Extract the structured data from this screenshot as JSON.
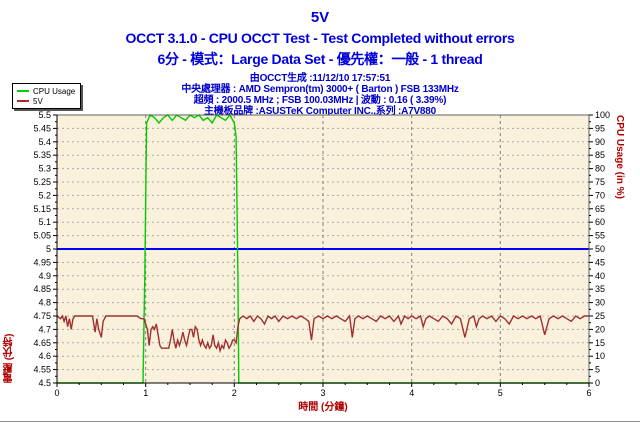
{
  "header": {
    "title": "5V",
    "subtitle1": "OCCT 3.1.0 - CPU OCCT Test - Test Completed without errors",
    "subtitle2": "6分 - 模式：Large Data Set - 優先權：一般 - 1 thread",
    "info_lines": [
      "由OCCT生成 :11/12/10 17:57:51",
      "中央處理器 : AMD Sempron(tm) 3000+ ( Barton ) FSB 133MHz",
      "超頻 : 2000.5 MHz ; FSB 100.03MHz | 波動 : 0.16 ( 3.39%)",
      "主機板品牌 :ASUSTeK Computer INC.,系列 :A7V880"
    ]
  },
  "legend": {
    "items": [
      {
        "label": "CPU Usage",
        "color": "#00cc00"
      },
      {
        "label": "5V",
        "color": "#a03030"
      }
    ]
  },
  "colors": {
    "title_text": "#0000dd",
    "info_text": "#0000cc",
    "axis_label": "#b00000",
    "plot_bg": "#faf1dc",
    "grid_minor": "#aaaaaa",
    "grid_major": "#808080",
    "border": "#606060",
    "reference_line": "#0000ff",
    "cpu_series": "#00cc00",
    "volt_series": "#a03030"
  },
  "chart_data": {
    "type": "line",
    "title": "5V",
    "xlabel": "時間 (分鐘)",
    "ylabel_left": "電壓 (伏特)",
    "ylabel_right": "CPU Usage (in %)",
    "xlim": [
      0,
      6
    ],
    "ylim_left": [
      4.5,
      5.5
    ],
    "ylim_right": [
      0,
      100
    ],
    "x_ticks": [
      0,
      1,
      2,
      3,
      4,
      5,
      6
    ],
    "x_minor_step": 0.25,
    "y_left_ticks": [
      4.5,
      4.55,
      4.6,
      4.65,
      4.7,
      4.75,
      4.8,
      4.85,
      4.9,
      4.95,
      5,
      5.05,
      5.1,
      5.15,
      5.2,
      5.25,
      5.3,
      5.35,
      5.4,
      5.45,
      5.5
    ],
    "y_left_minor_step": 0.025,
    "y_right_ticks": [
      0,
      5,
      10,
      15,
      20,
      25,
      30,
      35,
      40,
      45,
      50,
      55,
      60,
      65,
      70,
      75,
      80,
      85,
      90,
      95,
      100
    ],
    "grid": true,
    "legend_position": "top-left",
    "reference_line": {
      "axis": "left",
      "value": 5.0,
      "color": "#0000ff"
    },
    "series": [
      {
        "name": "CPU Usage",
        "axis": "right",
        "color": "#00cc00",
        "points": [
          [
            0,
            0
          ],
          [
            0.97,
            0
          ],
          [
            0.99,
            40
          ],
          [
            1.01,
            97
          ],
          [
            1.05,
            100
          ],
          [
            1.1,
            99
          ],
          [
            1.15,
            97
          ],
          [
            1.2,
            99
          ],
          [
            1.25,
            100
          ],
          [
            1.3,
            98
          ],
          [
            1.35,
            100
          ],
          [
            1.4,
            99
          ],
          [
            1.45,
            98
          ],
          [
            1.5,
            100
          ],
          [
            1.55,
            99
          ],
          [
            1.6,
            100
          ],
          [
            1.65,
            98
          ],
          [
            1.7,
            99
          ],
          [
            1.75,
            97
          ],
          [
            1.8,
            100
          ],
          [
            1.85,
            99
          ],
          [
            1.9,
            98
          ],
          [
            1.95,
            100
          ],
          [
            2,
            97
          ],
          [
            2.02,
            92
          ],
          [
            2.04,
            40
          ],
          [
            2.05,
            0
          ],
          [
            6,
            0
          ]
        ]
      },
      {
        "name": "5V",
        "axis": "left",
        "color": "#a03030",
        "points": [
          [
            0,
            4.75
          ],
          [
            0.04,
            4.74
          ],
          [
            0.06,
            4.75
          ],
          [
            0.08,
            4.73
          ],
          [
            0.1,
            4.75
          ],
          [
            0.12,
            4.71
          ],
          [
            0.14,
            4.74
          ],
          [
            0.16,
            4.7
          ],
          [
            0.18,
            4.74
          ],
          [
            0.2,
            4.75
          ],
          [
            0.25,
            4.75
          ],
          [
            0.3,
            4.75
          ],
          [
            0.35,
            4.75
          ],
          [
            0.4,
            4.75
          ],
          [
            0.43,
            4.69
          ],
          [
            0.45,
            4.74
          ],
          [
            0.47,
            4.7
          ],
          [
            0.5,
            4.67
          ],
          [
            0.52,
            4.73
          ],
          [
            0.55,
            4.75
          ],
          [
            0.6,
            4.75
          ],
          [
            0.7,
            4.75
          ],
          [
            0.8,
            4.75
          ],
          [
            0.9,
            4.75
          ],
          [
            0.95,
            4.74
          ],
          [
            0.98,
            4.74
          ],
          [
            1,
            4.72
          ],
          [
            1.02,
            4.7
          ],
          [
            1.04,
            4.64
          ],
          [
            1.06,
            4.7
          ],
          [
            1.08,
            4.71
          ],
          [
            1.1,
            4.7
          ],
          [
            1.12,
            4.72
          ],
          [
            1.14,
            4.68
          ],
          [
            1.16,
            4.64
          ],
          [
            1.18,
            4.63
          ],
          [
            1.22,
            4.63
          ],
          [
            1.26,
            4.63
          ],
          [
            1.28,
            4.66
          ],
          [
            1.3,
            4.7
          ],
          [
            1.32,
            4.66
          ],
          [
            1.34,
            4.63
          ],
          [
            1.36,
            4.66
          ],
          [
            1.38,
            4.64
          ],
          [
            1.4,
            4.66
          ],
          [
            1.42,
            4.69
          ],
          [
            1.44,
            4.66
          ],
          [
            1.46,
            4.64
          ],
          [
            1.48,
            4.67
          ],
          [
            1.5,
            4.7
          ],
          [
            1.52,
            4.7
          ],
          [
            1.54,
            4.67
          ],
          [
            1.56,
            4.71
          ],
          [
            1.58,
            4.7
          ],
          [
            1.6,
            4.66
          ],
          [
            1.62,
            4.64
          ],
          [
            1.64,
            4.66
          ],
          [
            1.66,
            4.64
          ],
          [
            1.68,
            4.63
          ],
          [
            1.7,
            4.65
          ],
          [
            1.72,
            4.63
          ],
          [
            1.74,
            4.64
          ],
          [
            1.76,
            4.68
          ],
          [
            1.78,
            4.64
          ],
          [
            1.8,
            4.63
          ],
          [
            1.82,
            4.65
          ],
          [
            1.84,
            4.62
          ],
          [
            1.86,
            4.64
          ],
          [
            1.88,
            4.63
          ],
          [
            1.9,
            4.66
          ],
          [
            1.92,
            4.65
          ],
          [
            1.94,
            4.63
          ],
          [
            1.96,
            4.64
          ],
          [
            1.98,
            4.66
          ],
          [
            2,
            4.66
          ],
          [
            2.02,
            4.65
          ],
          [
            2.04,
            4.71
          ],
          [
            2.06,
            4.74
          ],
          [
            2.1,
            4.75
          ],
          [
            2.14,
            4.74
          ],
          [
            2.18,
            4.75
          ],
          [
            2.22,
            4.73
          ],
          [
            2.26,
            4.75
          ],
          [
            2.3,
            4.74
          ],
          [
            2.34,
            4.72
          ],
          [
            2.38,
            4.75
          ],
          [
            2.42,
            4.74
          ],
          [
            2.46,
            4.75
          ],
          [
            2.5,
            4.73
          ],
          [
            2.55,
            4.75
          ],
          [
            2.6,
            4.74
          ],
          [
            2.65,
            4.75
          ],
          [
            2.7,
            4.74
          ],
          [
            2.75,
            4.75
          ],
          [
            2.8,
            4.74
          ],
          [
            2.84,
            4.73
          ],
          [
            2.87,
            4.66
          ],
          [
            2.9,
            4.74
          ],
          [
            2.95,
            4.75
          ],
          [
            3,
            4.74
          ],
          [
            3.05,
            4.75
          ],
          [
            3.1,
            4.74
          ],
          [
            3.15,
            4.75
          ],
          [
            3.2,
            4.74
          ],
          [
            3.25,
            4.73
          ],
          [
            3.3,
            4.75
          ],
          [
            3.33,
            4.67
          ],
          [
            3.36,
            4.74
          ],
          [
            3.4,
            4.75
          ],
          [
            3.45,
            4.74
          ],
          [
            3.5,
            4.75
          ],
          [
            3.55,
            4.74
          ],
          [
            3.6,
            4.73
          ],
          [
            3.65,
            4.75
          ],
          [
            3.7,
            4.74
          ],
          [
            3.75,
            4.75
          ],
          [
            3.8,
            4.73
          ],
          [
            3.85,
            4.75
          ],
          [
            3.88,
            4.72
          ],
          [
            3.92,
            4.75
          ],
          [
            3.96,
            4.74
          ],
          [
            4,
            4.75
          ],
          [
            4.05,
            4.74
          ],
          [
            4.1,
            4.75
          ],
          [
            4.13,
            4.71
          ],
          [
            4.16,
            4.74
          ],
          [
            4.2,
            4.75
          ],
          [
            4.25,
            4.74
          ],
          [
            4.3,
            4.73
          ],
          [
            4.35,
            4.75
          ],
          [
            4.4,
            4.74
          ],
          [
            4.45,
            4.72
          ],
          [
            4.5,
            4.75
          ],
          [
            4.55,
            4.74
          ],
          [
            4.6,
            4.67
          ],
          [
            4.65,
            4.74
          ],
          [
            4.7,
            4.75
          ],
          [
            4.73,
            4.71
          ],
          [
            4.76,
            4.74
          ],
          [
            4.8,
            4.75
          ],
          [
            4.85,
            4.74
          ],
          [
            4.9,
            4.75
          ],
          [
            4.95,
            4.73
          ],
          [
            5,
            4.75
          ],
          [
            5.05,
            4.74
          ],
          [
            5.1,
            4.72
          ],
          [
            5.15,
            4.75
          ],
          [
            5.2,
            4.74
          ],
          [
            5.25,
            4.75
          ],
          [
            5.3,
            4.74
          ],
          [
            5.35,
            4.75
          ],
          [
            5.4,
            4.74
          ],
          [
            5.45,
            4.75
          ],
          [
            5.5,
            4.68
          ],
          [
            5.55,
            4.74
          ],
          [
            5.6,
            4.75
          ],
          [
            5.65,
            4.74
          ],
          [
            5.7,
            4.75
          ],
          [
            5.75,
            4.74
          ],
          [
            5.8,
            4.73
          ],
          [
            5.85,
            4.75
          ],
          [
            5.9,
            4.74
          ],
          [
            5.95,
            4.75
          ],
          [
            6,
            4.75
          ]
        ]
      }
    ]
  }
}
